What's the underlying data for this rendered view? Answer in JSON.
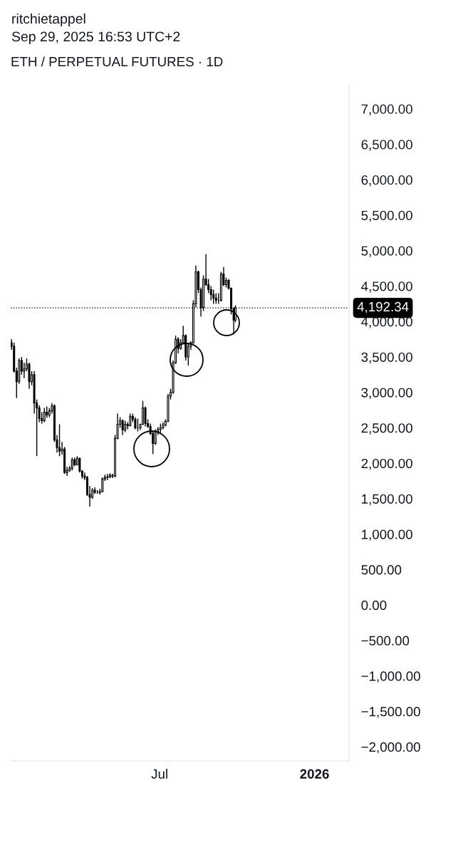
{
  "chart_data": {
    "type": "candlestick",
    "title": "ETH / PERPETUAL FUTURES · 1D",
    "annotations": [
      "ritchietappel",
      "Sep 29, 2025 16:53 UTC+2"
    ],
    "color": "#000000",
    "x": [
      "2025-01-06",
      "2025-01-09",
      "2025-01-12",
      "2025-01-15",
      "2025-01-18",
      "2025-01-21",
      "2025-01-24",
      "2025-01-27",
      "2025-01-30",
      "2025-02-02",
      "2025-02-05",
      "2025-02-08",
      "2025-02-11",
      "2025-02-14",
      "2025-02-17",
      "2025-02-20",
      "2025-02-23",
      "2025-02-26",
      "2025-03-01",
      "2025-03-04",
      "2025-03-07",
      "2025-03-10",
      "2025-03-13",
      "2025-03-16",
      "2025-03-19",
      "2025-03-22",
      "2025-03-25",
      "2025-03-28",
      "2025-03-31",
      "2025-04-03",
      "2025-04-06",
      "2025-04-09",
      "2025-04-12",
      "2025-04-15",
      "2025-04-18",
      "2025-04-21",
      "2025-04-24",
      "2025-04-27",
      "2025-04-30",
      "2025-05-03",
      "2025-05-06",
      "2025-05-09",
      "2025-05-12",
      "2025-05-15",
      "2025-05-18",
      "2025-05-21",
      "2025-05-24",
      "2025-05-27",
      "2025-05-30",
      "2025-06-02",
      "2025-06-05",
      "2025-06-08",
      "2025-06-11",
      "2025-06-14",
      "2025-06-17",
      "2025-06-20",
      "2025-06-23",
      "2025-06-26",
      "2025-06-29",
      "2025-07-02",
      "2025-07-05",
      "2025-07-08",
      "2025-07-11",
      "2025-07-14",
      "2025-07-17",
      "2025-07-20",
      "2025-07-23",
      "2025-07-26",
      "2025-07-29",
      "2025-08-01",
      "2025-08-04",
      "2025-08-07",
      "2025-08-10",
      "2025-08-13",
      "2025-08-16",
      "2025-08-19",
      "2025-08-22",
      "2025-08-25",
      "2025-08-28",
      "2025-08-31",
      "2025-09-03",
      "2025-09-06",
      "2025-09-09",
      "2025-09-12",
      "2025-09-15",
      "2025-09-18",
      "2025-09-21",
      "2025-09-24",
      "2025-09-27",
      "2025-09-29"
    ],
    "ohlc": [
      [
        3700,
        3750,
        3600,
        3650
      ],
      [
        3650,
        3700,
        3280,
        3300
      ],
      [
        3300,
        3350,
        2920,
        3150
      ],
      [
        3150,
        3480,
        3120,
        3450
      ],
      [
        3450,
        3500,
        3250,
        3300
      ],
      [
        3300,
        3420,
        3200,
        3330
      ],
      [
        3330,
        3480,
        3300,
        3400
      ],
      [
        3400,
        3420,
        3050,
        3150
      ],
      [
        3150,
        3300,
        3100,
        3250
      ],
      [
        3250,
        3300,
        2700,
        2850
      ],
      [
        2850,
        2900,
        2100,
        2780
      ],
      [
        2780,
        2820,
        2580,
        2630
      ],
      [
        2630,
        2720,
        2560,
        2600
      ],
      [
        2600,
        2780,
        2580,
        2720
      ],
      [
        2720,
        2800,
        2640,
        2680
      ],
      [
        2680,
        2780,
        2650,
        2740
      ],
      [
        2740,
        2850,
        2700,
        2810
      ],
      [
        2810,
        2830,
        2300,
        2330
      ],
      [
        2330,
        2400,
        2150,
        2220
      ],
      [
        2220,
        2550,
        2100,
        2170
      ],
      [
        2170,
        2300,
        2120,
        2200
      ],
      [
        2200,
        2230,
        1850,
        1870
      ],
      [
        1870,
        1950,
        1820,
        1900
      ],
      [
        1900,
        1960,
        1880,
        1930
      ],
      [
        1930,
        2080,
        1900,
        2050
      ],
      [
        2050,
        2080,
        1960,
        1980
      ],
      [
        1980,
        2100,
        1970,
        2070
      ],
      [
        2070,
        2080,
        1870,
        1890
      ],
      [
        1890,
        1900,
        1780,
        1820
      ],
      [
        1820,
        1870,
        1760,
        1800
      ],
      [
        1800,
        1820,
        1540,
        1560
      ],
      [
        1560,
        1680,
        1390,
        1520
      ],
      [
        1520,
        1650,
        1500,
        1620
      ],
      [
        1620,
        1660,
        1570,
        1590
      ],
      [
        1590,
        1620,
        1570,
        1590
      ],
      [
        1590,
        1640,
        1560,
        1600
      ],
      [
        1600,
        1800,
        1590,
        1780
      ],
      [
        1780,
        1840,
        1750,
        1800
      ],
      [
        1800,
        1850,
        1760,
        1810
      ],
      [
        1810,
        1860,
        1790,
        1830
      ],
      [
        1830,
        1850,
        1790,
        1820
      ],
      [
        1820,
        2400,
        1800,
        2350
      ],
      [
        2350,
        2700,
        2340,
        2550
      ],
      [
        2550,
        2650,
        2500,
        2600
      ],
      [
        2600,
        2620,
        2400,
        2470
      ],
      [
        2470,
        2600,
        2440,
        2550
      ],
      [
        2550,
        2580,
        2480,
        2530
      ],
      [
        2530,
        2700,
        2520,
        2660
      ],
      [
        2660,
        2700,
        2580,
        2620
      ],
      [
        2620,
        2650,
        2480,
        2500
      ],
      [
        2500,
        2630,
        2450,
        2500
      ],
      [
        2500,
        2560,
        2470,
        2550
      ],
      [
        2550,
        2880,
        2540,
        2780
      ],
      [
        2780,
        2800,
        2520,
        2560
      ],
      [
        2560,
        2620,
        2500,
        2520
      ],
      [
        2520,
        2560,
        2400,
        2420
      ],
      [
        2420,
        2450,
        2130,
        2280
      ],
      [
        2280,
        2480,
        2260,
        2450
      ],
      [
        2450,
        2510,
        2400,
        2480
      ],
      [
        2480,
        2560,
        2430,
        2500
      ],
      [
        2500,
        2580,
        2480,
        2540
      ],
      [
        2540,
        2620,
        2520,
        2590
      ],
      [
        2590,
        2980,
        2580,
        2950
      ],
      [
        2950,
        3050,
        2900,
        3000
      ],
      [
        3000,
        3450,
        2980,
        3420
      ],
      [
        3420,
        3800,
        3400,
        3750
      ],
      [
        3750,
        3780,
        3550,
        3620
      ],
      [
        3620,
        3750,
        3600,
        3700
      ],
      [
        3700,
        3940,
        3680,
        3800
      ],
      [
        3800,
        3820,
        3450,
        3500
      ],
      [
        3500,
        3700,
        3380,
        3650
      ],
      [
        3650,
        3720,
        3600,
        3700
      ],
      [
        3700,
        4300,
        3690,
        4250
      ],
      [
        4250,
        4790,
        4200,
        4700
      ],
      [
        4700,
        4720,
        4400,
        4450
      ],
      [
        4450,
        4480,
        4070,
        4200
      ],
      [
        4200,
        4650,
        4150,
        4600
      ],
      [
        4600,
        4950,
        4500,
        4520
      ],
      [
        4520,
        4600,
        4400,
        4450
      ],
      [
        4450,
        4500,
        4300,
        4380
      ],
      [
        4380,
        4450,
        4250,
        4330
      ],
      [
        4330,
        4400,
        4250,
        4300
      ],
      [
        4300,
        4400,
        4250,
        4300
      ],
      [
        4300,
        4700,
        4280,
        4670
      ],
      [
        4670,
        4770,
        4500,
        4520
      ],
      [
        4520,
        4620,
        4480,
        4580
      ],
      [
        4580,
        4600,
        4450,
        4470
      ],
      [
        4470,
        4480,
        4100,
        4180
      ],
      [
        4180,
        4200,
        3820,
        4020
      ],
      [
        4020,
        4230,
        3990,
        4192.34
      ]
    ],
    "ylim": [
      -2200,
      7350
    ],
    "yticks": [
      {
        "value": -2000,
        "label": "−2,000.00"
      },
      {
        "value": -1500,
        "label": "−1,500.00"
      },
      {
        "value": -1000,
        "label": "−1,000.00"
      },
      {
        "value": -500,
        "label": "−500.00"
      },
      {
        "value": 0,
        "label": "0.00"
      },
      {
        "value": 500,
        "label": "500.00"
      },
      {
        "value": 1000,
        "label": "1,000.00"
      },
      {
        "value": 1500,
        "label": "1,500.00"
      },
      {
        "value": 2000,
        "label": "2,000.00"
      },
      {
        "value": 2500,
        "label": "2,500.00"
      },
      {
        "value": 3000,
        "label": "3,000.00"
      },
      {
        "value": 3500,
        "label": "3,500.00"
      },
      {
        "value": 4000,
        "label": "4,000.00"
      },
      {
        "value": 4500,
        "label": "4,500.00"
      },
      {
        "value": 5000,
        "label": "5,000.00"
      },
      {
        "value": 5500,
        "label": "5,500.00"
      },
      {
        "value": 6000,
        "label": "6,000.00"
      },
      {
        "value": 6500,
        "label": "6,500.00"
      },
      {
        "value": 7000,
        "label": "7,000.00"
      }
    ],
    "xlim": [
      "2025-01-05",
      "2026-02-11"
    ],
    "xticks": [
      {
        "value": "2025-07-01",
        "label": "Jul"
      },
      {
        "value": "2026-01-01",
        "label": "2026"
      }
    ],
    "ref_lines": [
      {
        "axis": "y",
        "value": 4192.34,
        "label": "4,192.34",
        "line_style": "dotted",
        "color": "#000000"
      }
    ],
    "grid": false
  }
}
